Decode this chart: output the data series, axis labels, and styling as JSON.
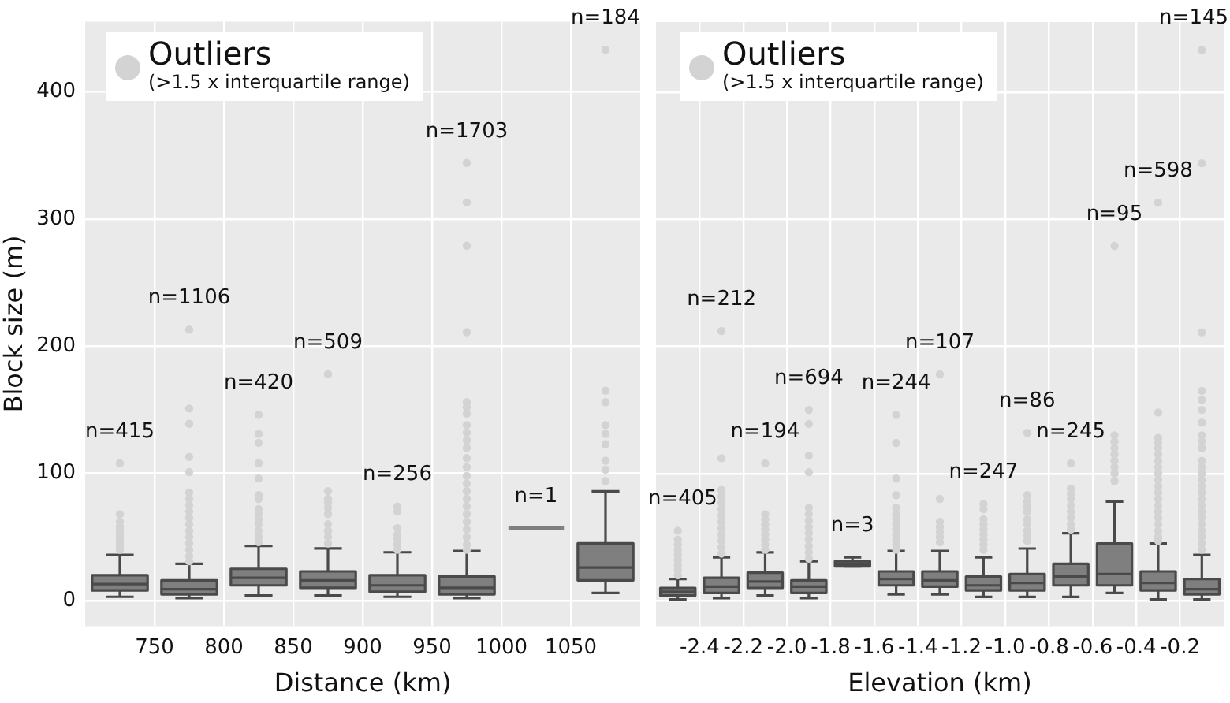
{
  "chart_data": [
    {
      "type": "box",
      "xlabel": "Distance (km)",
      "ylabel": "Block size (m)",
      "x": [
        725,
        775,
        825,
        875,
        925,
        975,
        1025,
        1075
      ],
      "xlim": [
        700,
        1100
      ],
      "xticks": [
        750,
        800,
        850,
        900,
        950,
        1000,
        1050
      ],
      "ylim": [
        -20,
        455
      ],
      "yticks": [
        0,
        100,
        200,
        300,
        400
      ],
      "grid": true,
      "series": [
        {
          "color": "#7f7f7f",
          "boxes": [
            {
              "low": 3,
              "q1": 8,
              "median": 13,
              "q3": 20,
              "high": 36,
              "outliers": [
                108,
                68,
                62,
                58,
                55,
                52,
                49,
                46,
                43,
                40
              ]
            },
            {
              "low": 2,
              "q1": 5,
              "median": 9,
              "q3": 16,
              "high": 29,
              "outliers": [
                213,
                151,
                139,
                113,
                101,
                85,
                80,
                75,
                70,
                65,
                60,
                55,
                50,
                45,
                40,
                35,
                31
              ]
            },
            {
              "low": 4,
              "q1": 12,
              "median": 18,
              "q3": 25,
              "high": 43,
              "outliers": [
                146,
                131,
                124,
                108,
                96,
                83,
                80,
                72,
                68,
                64,
                60,
                55,
                50,
                46
              ]
            },
            {
              "low": 4,
              "q1": 10,
              "median": 16,
              "q3": 23,
              "high": 41,
              "outliers": [
                178,
                86,
                80,
                77,
                73,
                68,
                60,
                55,
                50,
                45
              ]
            },
            {
              "low": 3,
              "q1": 7,
              "median": 12,
              "q3": 20,
              "high": 38,
              "outliers": [
                74,
                70,
                57,
                52,
                48,
                44,
                40
              ]
            },
            {
              "low": 2,
              "q1": 5,
              "median": 10,
              "q3": 19,
              "high": 39,
              "outliers": [
                344,
                313,
                279,
                211,
                156,
                152,
                147,
                138,
                132,
                126,
                120,
                112,
                105,
                98,
                92,
                86,
                80,
                74,
                68,
                62,
                56,
                50,
                44,
                40
              ]
            },
            {
              "low": 57,
              "q1": 57,
              "median": 57,
              "q3": 57,
              "high": 57
            },
            {
              "low": 6,
              "q1": 16,
              "median": 26,
              "q3": 45,
              "high": 86,
              "outliers": [
                433,
                165,
                156,
                138,
                131,
                123,
                110,
                103,
                94
              ]
            }
          ]
        }
      ],
      "annotations": [
        "Outliers",
        "(>1.5 x interquartile range)",
        "n=415",
        "n=1106",
        "n=420",
        "n=509",
        "n=256",
        "n=1703",
        "n=1",
        "n=184"
      ]
    },
    {
      "type": "box",
      "xlabel": "Elevation (km)",
      "x": [
        -2.5,
        -2.3,
        -2.1,
        -1.9,
        -1.7,
        -1.5,
        -1.3,
        -1.1,
        -0.9,
        -0.7,
        -0.5,
        -0.3,
        -0.1
      ],
      "xlim": [
        -2.6,
        0.0
      ],
      "xticks": [
        {
          "value": -2.4,
          "label": "-2.4"
        },
        {
          "value": -2.2,
          "label": "-2.2"
        },
        {
          "value": -2.0,
          "label": "-2.0"
        },
        {
          "value": -1.8,
          "label": "-1.8"
        },
        {
          "value": -1.6,
          "label": "-1.6"
        },
        {
          "value": -1.4,
          "label": "-1.4"
        },
        {
          "value": -1.2,
          "label": "-1.2"
        },
        {
          "value": -1.0,
          "label": "-1.0"
        },
        {
          "value": -0.8,
          "label": "-0.8"
        },
        {
          "value": -0.6,
          "label": "-0.6"
        },
        {
          "value": -0.4,
          "label": "-0.4"
        },
        {
          "value": -0.2,
          "label": "-0.2"
        }
      ],
      "ylim": [
        -20,
        455
      ],
      "yticks": [
        0,
        100,
        200,
        300,
        400
      ],
      "grid": true,
      "tick_labels": "x",
      "series": [
        {
          "color": "#7f7f7f",
          "boxes": [
            {
              "low": 1,
              "q1": 4,
              "median": 7,
              "q3": 10,
              "high": 17,
              "outliers": [
                55,
                48,
                44,
                40,
                36,
                32,
                28,
                24,
                20
              ]
            },
            {
              "low": 2,
              "q1": 6,
              "median": 11,
              "q3": 18,
              "high": 34,
              "outliers": [
                212,
                112,
                87,
                82,
                77,
                72,
                67,
                62,
                57,
                52,
                47,
                42,
                37
              ]
            },
            {
              "low": 4,
              "q1": 10,
              "median": 15,
              "q3": 22,
              "high": 38,
              "outliers": [
                108,
                68,
                64,
                60,
                56,
                52,
                48,
                44,
                40
              ]
            },
            {
              "low": 2,
              "q1": 6,
              "median": 11,
              "q3": 16,
              "high": 31,
              "outliers": [
                150,
                139,
                114,
                101,
                73,
                68,
                63,
                58,
                53,
                48,
                43,
                38,
                33
              ]
            },
            {
              "low": 27,
              "q1": 27,
              "median": 29,
              "q3": 31,
              "high": 34
            },
            {
              "low": 5,
              "q1": 12,
              "median": 17,
              "q3": 23,
              "high": 39,
              "outliers": [
                146,
                124,
                96,
                83,
                73,
                68,
                64,
                60,
                56,
                52,
                48,
                44,
                40
              ]
            },
            {
              "low": 5,
              "q1": 11,
              "median": 16,
              "q3": 23,
              "high": 39,
              "outliers": [
                178,
                80,
                62,
                58,
                54,
                50,
                46
              ]
            },
            {
              "low": 3,
              "q1": 8,
              "median": 12,
              "q3": 19,
              "high": 34,
              "outliers": [
                76,
                72,
                64,
                60,
                56,
                52,
                48,
                44,
                40
              ]
            },
            {
              "low": 3,
              "q1": 8,
              "median": 14,
              "q3": 21,
              "high": 41,
              "outliers": [
                132,
                83,
                78,
                74,
                70,
                64,
                60,
                55,
                51,
                47
              ]
            },
            {
              "low": 3,
              "q1": 12,
              "median": 19,
              "q3": 29,
              "high": 53,
              "outliers": [
                108,
                88,
                84,
                80,
                75,
                70,
                65,
                60,
                56
              ]
            },
            {
              "low": 6,
              "q1": 12,
              "median": 21,
              "q3": 45,
              "high": 78,
              "outliers": [
                279,
                130,
                125,
                120,
                115,
                110,
                105,
                100,
                94
              ]
            },
            {
              "low": 1,
              "q1": 8,
              "median": 14,
              "q3": 23,
              "high": 45,
              "outliers": [
                313,
                148,
                128,
                124,
                120,
                115,
                110,
                105,
                100,
                95,
                90,
                85,
                80,
                75,
                70,
                65,
                60,
                55,
                50,
                47
              ]
            },
            {
              "low": 1,
              "q1": 5,
              "median": 9,
              "q3": 17,
              "high": 36,
              "outliers": [
                433,
                344,
                211,
                165,
                158,
                150,
                140,
                130,
                125,
                120,
                110,
                105,
                100,
                95,
                90,
                85,
                80,
                75,
                70,
                65,
                60,
                55,
                50,
                45,
                40
              ]
            }
          ]
        }
      ],
      "annotations": [
        "Outliers",
        "(>1.5 x interquartile range)",
        "n=405",
        "n=212",
        "n=194",
        "n=694",
        "n=3",
        "n=244",
        "n=107",
        "n=247",
        "n=86",
        "n=245",
        "n=95",
        "n=598",
        "n=145"
      ]
    }
  ]
}
